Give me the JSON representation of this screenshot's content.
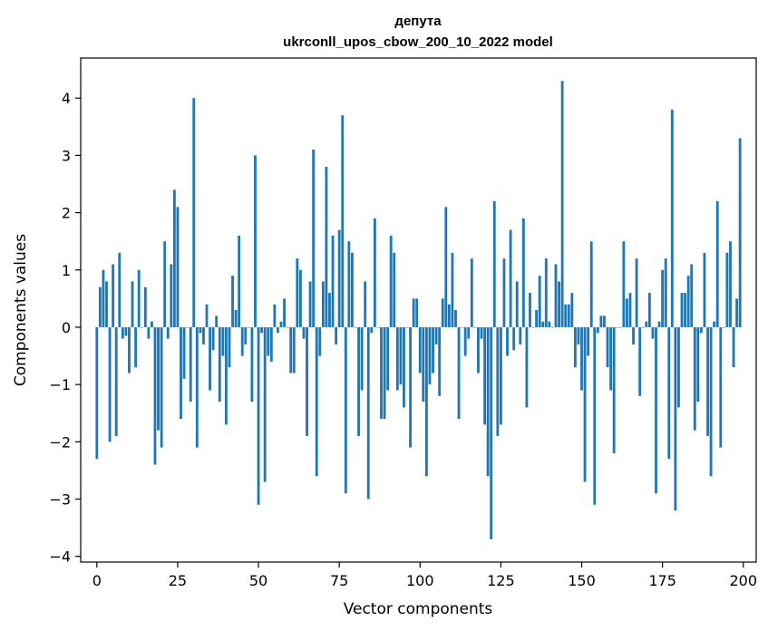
{
  "chart_data": {
    "type": "bar",
    "title": "депута",
    "subtitle": "ukrconll_upos_cbow_200_10_2022 model",
    "xlabel": "Vector components",
    "ylabel": "Components values",
    "xlim": [
      -5,
      204
    ],
    "ylim": [
      -4.1,
      4.7
    ],
    "xticks": [
      0,
      25,
      50,
      75,
      100,
      125,
      150,
      175,
      200
    ],
    "yticks": [
      -4,
      -3,
      -2,
      -1,
      0,
      1,
      2,
      3,
      4
    ],
    "color": "#1f77b4",
    "grid": false,
    "values": [
      -2.3,
      0.7,
      1.0,
      0.8,
      -2.0,
      1.1,
      -1.9,
      1.3,
      -0.2,
      -0.15,
      -0.8,
      0.8,
      -0.7,
      1.0,
      0.0,
      0.7,
      -0.2,
      0.1,
      -2.4,
      -1.8,
      -2.1,
      1.5,
      -0.2,
      1.1,
      2.4,
      2.1,
      -1.6,
      -0.9,
      0.0,
      -1.3,
      4.0,
      -2.1,
      -0.1,
      -0.3,
      0.4,
      -1.1,
      -0.4,
      0.2,
      -1.3,
      -0.5,
      -1.7,
      -0.7,
      0.9,
      0.3,
      1.6,
      -0.5,
      -0.3,
      0.0,
      -1.3,
      3.0,
      -3.1,
      -0.1,
      -2.7,
      -0.5,
      -0.6,
      0.4,
      -0.1,
      0.1,
      0.5,
      0.0,
      -0.8,
      -0.8,
      1.2,
      1.0,
      -0.2,
      -1.9,
      0.8,
      3.1,
      -2.6,
      -0.5,
      0.8,
      2.8,
      0.6,
      1.6,
      -0.3,
      1.7,
      3.7,
      -2.9,
      1.5,
      1.3,
      0.0,
      -1.9,
      -1.1,
      0.8,
      -3.0,
      -0.1,
      1.9,
      0.0,
      -1.6,
      -1.6,
      -1.1,
      1.6,
      1.3,
      -1.1,
      -1.0,
      -1.4,
      0.0,
      -2.1,
      0.5,
      0.5,
      -0.8,
      -1.3,
      -2.6,
      -1.0,
      -0.8,
      -0.3,
      -1.2,
      0.5,
      2.1,
      0.4,
      1.3,
      0.3,
      -1.6,
      0.0,
      -0.5,
      -0.2,
      1.2,
      0.0,
      -0.8,
      -0.2,
      -1.7,
      -2.6,
      -3.7,
      2.2,
      -1.9,
      -1.7,
      1.2,
      -0.5,
      1.7,
      -0.4,
      0.8,
      -0.3,
      1.9,
      -1.4,
      0.6,
      0.0,
      0.3,
      0.9,
      0.1,
      1.2,
      0.1,
      0.0,
      1.1,
      0.8,
      4.3,
      0.4,
      0.4,
      0.6,
      -0.7,
      -0.3,
      -1.1,
      -2.7,
      -0.5,
      1.5,
      -3.1,
      -0.1,
      0.2,
      0.2,
      -0.7,
      -1.1,
      -2.2,
      0.0,
      0.0,
      1.5,
      0.5,
      0.6,
      -0.3,
      1.2,
      -1.2,
      0.0,
      0.1,
      0.6,
      -0.2,
      -2.9,
      0.1,
      1.0,
      1.2,
      -2.3,
      3.8,
      -3.2,
      -1.4,
      0.6,
      0.6,
      0.9,
      1.1,
      -1.8,
      -1.3,
      -0.1,
      1.3,
      -1.9,
      -2.6,
      0.1,
      2.2,
      -2.1,
      0.0,
      1.3,
      1.5,
      -0.7,
      0.5,
      3.3
    ]
  }
}
